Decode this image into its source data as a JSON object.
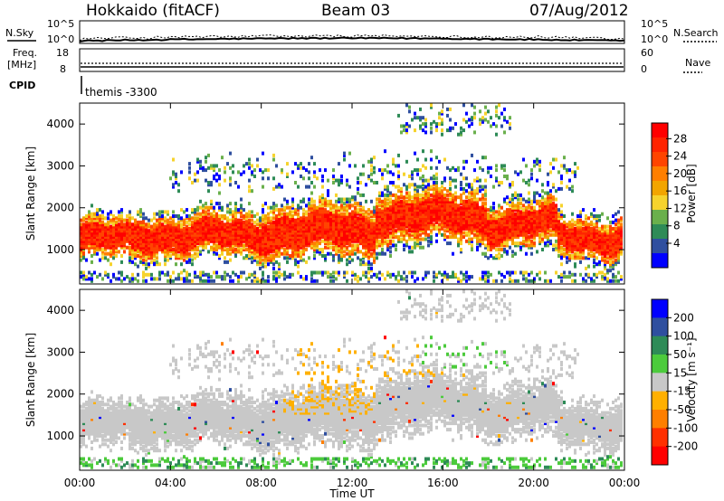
{
  "header": {
    "station": "Hokkaido (fitACF)",
    "beam": "Beam 03",
    "date": "07/Aug/2012"
  },
  "top_panels": {
    "nsky_label": "N.Sky",
    "nsearch_label": "N.Search",
    "noise_ticks": [
      "10^5",
      "10^0"
    ],
    "noise_right_ticks": [
      "10^5",
      "10^0"
    ],
    "freq_label_1": "Freq.",
    "freq_label_2": "[MHz]",
    "freq_ticks": [
      "18",
      "8"
    ],
    "nave_label": "Nave",
    "nave_ticks": [
      "60",
      "0"
    ],
    "cpid_label": "CPID",
    "cpid_value": "themis -3300"
  },
  "chart_data": [
    {
      "type": "heatmap",
      "name": "power",
      "ylabel": "Slant Range [km]",
      "xlabel": "",
      "x_ticks": [
        "00:00",
        "04:00",
        "08:00",
        "12:00",
        "16:00",
        "20:00",
        "00:00"
      ],
      "y_ticks": [
        1000,
        2000,
        3000,
        4000
      ],
      "ylim": [
        180,
        4500
      ],
      "xlim_hours": [
        0,
        24
      ],
      "colorbar": {
        "label": "Power [dB]",
        "ticks": [
          4,
          8,
          12,
          16,
          20,
          24,
          28
        ],
        "colors": [
          "#0000ff",
          "#2f4f9f",
          "#2e8b57",
          "#6ab04c",
          "#f6d32d",
          "#f2a500",
          "#ff7f00",
          "#ff4500",
          "#ff2400",
          "#ff0000"
        ]
      },
      "bands": [
        {
          "start": 0.0,
          "end": 2.5,
          "center": 1250,
          "width": 420,
          "tail": 500
        },
        {
          "start": 2.5,
          "end": 8.0,
          "center": 1350,
          "width": 450,
          "tail": 550
        },
        {
          "start": 8.0,
          "end": 13.0,
          "center": 1450,
          "width": 560,
          "tail": 650
        },
        {
          "start": 13.0,
          "end": 18.0,
          "center": 1800,
          "width": 500,
          "tail": 700
        },
        {
          "start": 18.0,
          "end": 21.0,
          "center": 1600,
          "width": 450,
          "tail": 600
        },
        {
          "start": 21.0,
          "end": 24.0,
          "center": 1300,
          "width": 400,
          "tail": 550
        }
      ]
    },
    {
      "type": "heatmap",
      "name": "velocity",
      "ylabel": "Slant Range [km]",
      "xlabel": "Time UT",
      "x_ticks": [
        "00:00",
        "04:00",
        "08:00",
        "12:00",
        "16:00",
        "20:00",
        "00:00"
      ],
      "y_ticks": [
        1000,
        2000,
        3000,
        4000
      ],
      "ylim": [
        180,
        4500
      ],
      "xlim_hours": [
        0,
        24
      ],
      "colorbar": {
        "label": "Velocity [m s⁻¹]",
        "ticks": [
          200,
          100,
          50,
          15,
          -15,
          -50,
          -100,
          -200
        ],
        "colors": [
          "#0000ff",
          "#2f4f9f",
          "#2e8b57",
          "#4ccb3c",
          "#c8c8c8",
          "#ffb000",
          "#ff7f00",
          "#ff3000",
          "#ff0000"
        ]
      }
    }
  ]
}
